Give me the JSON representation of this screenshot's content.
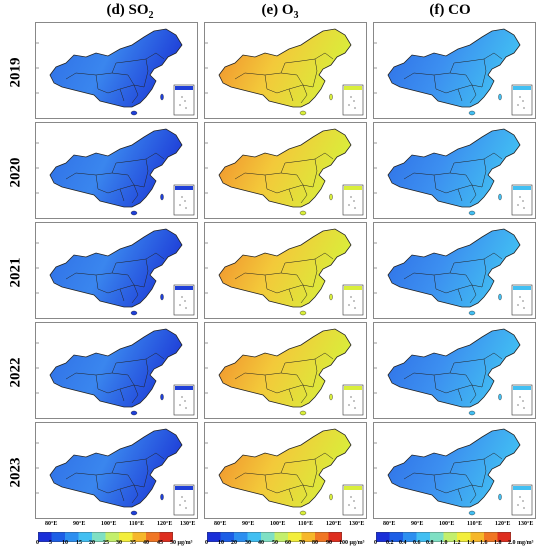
{
  "columns": [
    {
      "title_main": "(d) SO",
      "title_sub": "2"
    },
    {
      "title_main": "(e) O",
      "title_sub": "3"
    },
    {
      "title_main": "(f) CO",
      "title_sub": ""
    }
  ],
  "years": [
    "2019",
    "2020",
    "2021",
    "2022",
    "2023"
  ],
  "lon_ticks": [
    "80°E",
    "90°E",
    "100°E",
    "110°E",
    "120°E",
    "130°E"
  ],
  "colorbars": [
    {
      "ticks": [
        "0",
        "5",
        "10",
        "15",
        "20",
        "25",
        "30",
        "35",
        "40",
        "45"
      ],
      "last_label": "50 µg/m³",
      "colors": [
        "#1a2fd8",
        "#1c5ee6",
        "#2c8ff0",
        "#42bff2",
        "#7fe0c4",
        "#c3ef6c",
        "#f3ee3c",
        "#f6b72a",
        "#f07624",
        "#de2e1f"
      ]
    },
    {
      "ticks": [
        "0",
        "10",
        "20",
        "30",
        "40",
        "50",
        "60",
        "70",
        "80",
        "90"
      ],
      "last_label": "100 µg/m³",
      "colors": [
        "#1a2fd8",
        "#1c5ee6",
        "#2c8ff0",
        "#42bff2",
        "#7fe0c4",
        "#c3ef6c",
        "#f3ee3c",
        "#f6b72a",
        "#f07624",
        "#de2e1f"
      ]
    },
    {
      "ticks": [
        "0",
        "0.2",
        "0.4",
        "0.6",
        "0.8",
        "1.0",
        "1.2",
        "1.4",
        "1.6",
        "1.8"
      ],
      "last_label": "2.0 mg/m³",
      "colors": [
        "#1a2fd8",
        "#1c5ee6",
        "#2c8ff0",
        "#42bff2",
        "#7fe0c4",
        "#c3ef6c",
        "#f3ee3c",
        "#f6b72a",
        "#f07624",
        "#de2e1f"
      ]
    }
  ],
  "map_colors": {
    "so2": {
      "west": "#2f6ee6",
      "east": "#1f3fd8",
      "north": "#3a86ee"
    },
    "o3": {
      "west": "#f08a2c",
      "east": "#d9ee3a",
      "north": "#f3c93a"
    },
    "co": {
      "west": "#2f6ee6",
      "east": "#42bff2",
      "north": "#3c8ff0"
    }
  },
  "border_color": "#222222"
}
